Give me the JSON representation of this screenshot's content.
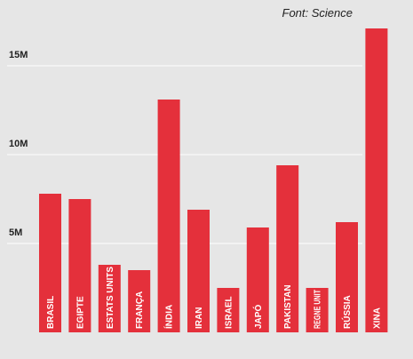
{
  "source_note": "Font: Science",
  "colors": {
    "bar": "#e4303b",
    "background": "#e6e6e6",
    "gridline": "#ffffff",
    "text": "#222222",
    "bar_label": "#ffffff"
  },
  "chart_data": {
    "type": "bar",
    "categories": [
      "BRASIL",
      "EGIPTE",
      "ESTATS UNITS",
      "FRANÇA",
      "ÍNDIA",
      "IRAN",
      "ISRAEL",
      "JAPÓ",
      "PAKISTAN",
      "REGNE UNIT",
      "RÚSSIA",
      "XINA"
    ],
    "values": [
      7.8,
      7.5,
      3.8,
      3.5,
      13.1,
      6.9,
      2.5,
      5.9,
      9.4,
      2.5,
      6.2,
      17.1
    ],
    "value_unit": "M",
    "yticks": [
      {
        "value": 5,
        "label": "5M"
      },
      {
        "value": 10,
        "label": "10M"
      },
      {
        "value": 15,
        "label": "15M"
      }
    ],
    "ylim": [
      0,
      17.5
    ],
    "grid": true,
    "category_labels_inside_bars": true,
    "title": "",
    "xlabel": "",
    "ylabel": ""
  }
}
